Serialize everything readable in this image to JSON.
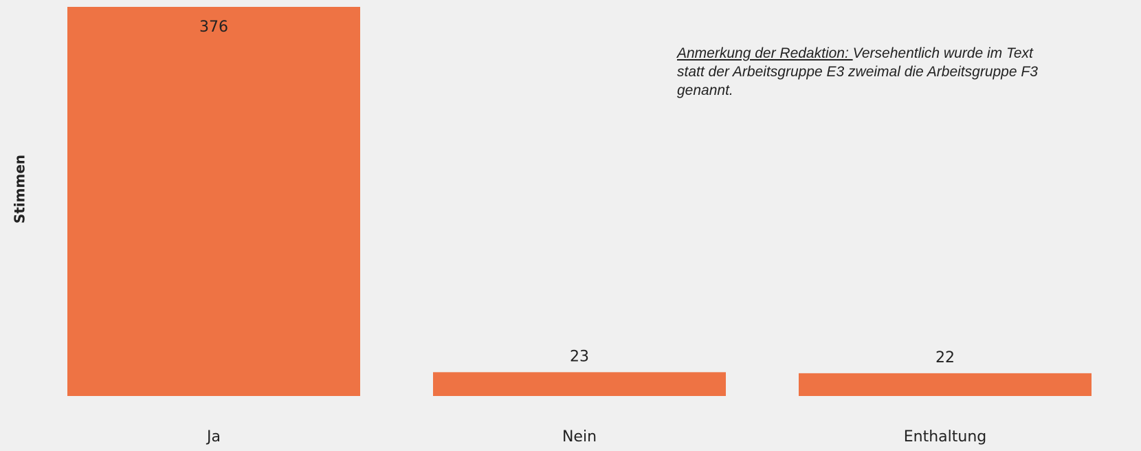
{
  "chart_data": {
    "type": "bar",
    "categories": [
      "Ja",
      "Nein",
      "Enthaltung"
    ],
    "values": [
      376,
      23,
      22
    ],
    "color": "#ee7344",
    "ylabel": "Stimmen",
    "ylim": [
      0,
      376
    ],
    "annotation": {
      "label": "Anmerkung der Redaktion: ",
      "text": "Versehentlich wurde im Text statt der Arbeitsgruppe E3 zweimal die Arbeitsgruppe F3 genannt."
    }
  }
}
